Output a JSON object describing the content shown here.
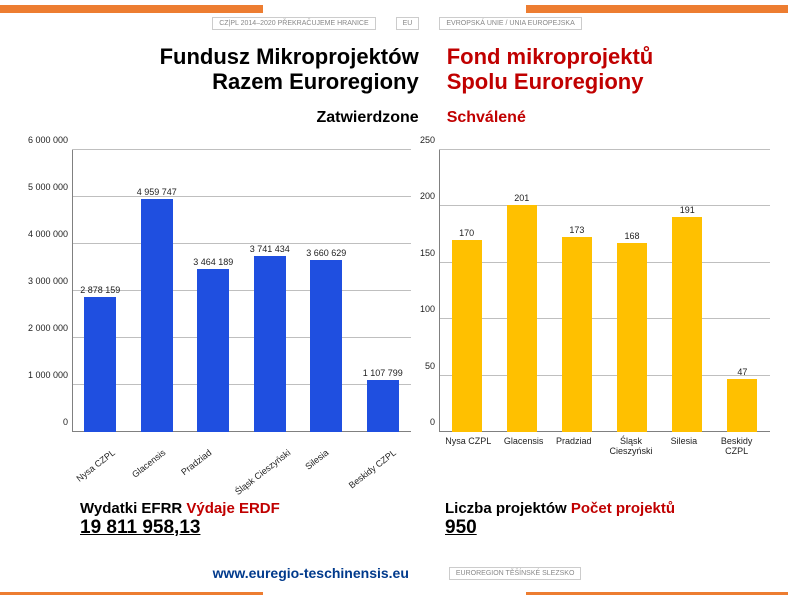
{
  "header": {
    "title_pl_line1": "Fundusz Mikroprojektów",
    "title_pl_line2": "Razem Euroregiony",
    "title_cz_line1": "Fond mikroprojektů",
    "title_cz_line2": "Spolu Euroregiony",
    "subtitle_pl": "Zatwierdzone",
    "subtitle_cz": "Schválené"
  },
  "colors": {
    "stripe_orange": "#ed7d31",
    "stripe_white": "#ffffff",
    "text_red": "#c00000",
    "bar_blue": "#1f4fe0",
    "bar_yellow": "#ffc000",
    "grid": "#bfbfbf",
    "axis": "#808080"
  },
  "chart_left": {
    "type": "bar",
    "ymax": 6000000,
    "ymin": 0,
    "ytick_step": 1000000,
    "yticks": [
      "0",
      "1 000 000",
      "2 000 000",
      "3 000 000",
      "4 000 000",
      "5 000 000",
      "6 000 000"
    ],
    "categories": [
      "Nysa CZPL",
      "Glacensis",
      "Pradziad",
      "Śląsk Cieszyński",
      "Silesia",
      "Beskidy CZPL"
    ],
    "values": [
      2878159,
      4959747,
      3464189,
      3741434,
      3660629,
      1107799
    ],
    "value_labels": [
      "2 878 159",
      "4 959 747",
      "3 464 189",
      "3 741 434",
      "3 660 629",
      "1 107 799"
    ],
    "bar_color": "#1f4fe0",
    "xlabel_rotate": true
  },
  "chart_right": {
    "type": "bar",
    "ymax": 250,
    "ymin": 0,
    "ytick_step": 50,
    "yticks": [
      "0",
      "50",
      "100",
      "150",
      "200",
      "250"
    ],
    "categories": [
      "Nysa CZPL",
      "Glacensis",
      "Pradziad",
      "Śląsk Cieszyński",
      "Silesia",
      "Beskidy CZPL"
    ],
    "values": [
      170,
      201,
      173,
      168,
      191,
      47
    ],
    "value_labels": [
      "170",
      "201",
      "173",
      "168",
      "191",
      "47"
    ],
    "bar_color": "#ffc000",
    "xlabel_rotate": false
  },
  "summary": {
    "left_label_pl": "Wydatki EFRR",
    "left_label_cz": "Výdaje ERDF",
    "left_value": "19 811 958,13",
    "right_label_pl": "Liczba projektów",
    "right_label_cz": "Počet projektů",
    "right_value": "950"
  },
  "footer": {
    "url": "www.euregio-teschinensis.eu",
    "logo_left": "CZ|PL 2014–2020",
    "logo_right": "EUROREGION TĚŠÍNSKÉ SLEZSKO"
  },
  "header_logos": {
    "l1": "CZ|PL 2014–2020 PŘEKRAČUJEME HRANICE",
    "l2": "EU",
    "l3": "EVROPSKÁ UNIE / UNIA EUROPEJSKA"
  }
}
